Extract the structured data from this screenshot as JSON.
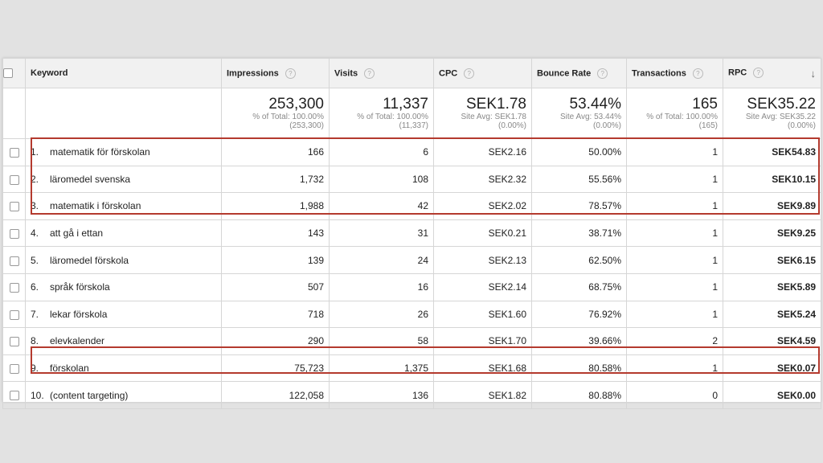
{
  "columns": {
    "keyword": "Keyword",
    "impressions": "Impressions",
    "visits": "Visits",
    "cpc": "CPC",
    "bounce": "Bounce Rate",
    "transactions": "Transactions",
    "rpc": "RPC",
    "help_glyph": "?",
    "sort_glyph": "↓"
  },
  "totals": {
    "impressions": {
      "main": "253,300",
      "sub1": "% of Total: 100.00%",
      "sub2": "(253,300)"
    },
    "visits": {
      "main": "11,337",
      "sub1": "% of Total: 100.00%",
      "sub2": "(11,337)"
    },
    "cpc": {
      "main": "SEK1.78",
      "sub1": "Site Avg: SEK1.78",
      "sub2": "(0.00%)"
    },
    "bounce": {
      "main": "53.44%",
      "sub1": "Site Avg: 53.44%",
      "sub2": "(0.00%)"
    },
    "transactions": {
      "main": "165",
      "sub1": "% of Total: 100.00%",
      "sub2": "(165)"
    },
    "rpc": {
      "main": "SEK35.22",
      "sub1": "Site Avg: SEK35.22",
      "sub2": "(0.00%)"
    }
  },
  "rows": [
    {
      "idx": "1.",
      "keyword": "matematik för förskolan",
      "impressions": "166",
      "visits": "6",
      "cpc": "SEK2.16",
      "bounce": "50.00%",
      "transactions": "1",
      "rpc": "SEK54.83"
    },
    {
      "idx": "2.",
      "keyword": "läromedel svenska",
      "impressions": "1,732",
      "visits": "108",
      "cpc": "SEK2.32",
      "bounce": "55.56%",
      "transactions": "1",
      "rpc": "SEK10.15"
    },
    {
      "idx": "3.",
      "keyword": "matematik i förskolan",
      "impressions": "1,988",
      "visits": "42",
      "cpc": "SEK2.02",
      "bounce": "78.57%",
      "transactions": "1",
      "rpc": "SEK9.89"
    },
    {
      "idx": "4.",
      "keyword": "att gå i ettan",
      "impressions": "143",
      "visits": "31",
      "cpc": "SEK0.21",
      "bounce": "38.71%",
      "transactions": "1",
      "rpc": "SEK9.25"
    },
    {
      "idx": "5.",
      "keyword": "läromedel förskola",
      "impressions": "139",
      "visits": "24",
      "cpc": "SEK2.13",
      "bounce": "62.50%",
      "transactions": "1",
      "rpc": "SEK6.15"
    },
    {
      "idx": "6.",
      "keyword": "språk förskola",
      "impressions": "507",
      "visits": "16",
      "cpc": "SEK2.14",
      "bounce": "68.75%",
      "transactions": "1",
      "rpc": "SEK5.89"
    },
    {
      "idx": "7.",
      "keyword": "lekar förskola",
      "impressions": "718",
      "visits": "26",
      "cpc": "SEK1.60",
      "bounce": "76.92%",
      "transactions": "1",
      "rpc": "SEK5.24"
    },
    {
      "idx": "8.",
      "keyword": "elevkalender",
      "impressions": "290",
      "visits": "58",
      "cpc": "SEK1.70",
      "bounce": "39.66%",
      "transactions": "2",
      "rpc": "SEK4.59"
    },
    {
      "idx": "9.",
      "keyword": "förskolan",
      "impressions": "75,723",
      "visits": "1,375",
      "cpc": "SEK1.68",
      "bounce": "80.58%",
      "transactions": "1",
      "rpc": "SEK0.07"
    },
    {
      "idx": "10.",
      "keyword": "(content targeting)",
      "impressions": "122,058",
      "visits": "136",
      "cpc": "SEK1.82",
      "bounce": "80.88%",
      "transactions": "0",
      "rpc": "SEK0.00"
    }
  ],
  "colors": {
    "highlight": "#b43a2e",
    "header_bg": "#f1f1f1",
    "page_bg": "#e2e2e2"
  }
}
